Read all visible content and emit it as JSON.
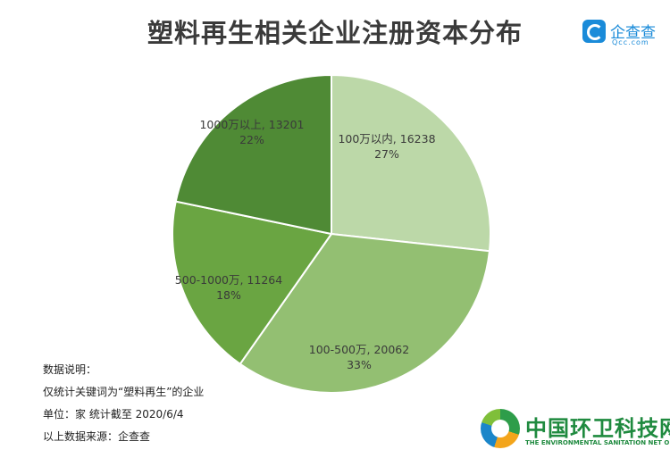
{
  "header": {
    "title": "塑料再生相关企业注册资本分布"
  },
  "brand": {
    "name": "企查查",
    "sub": "Qcc.com",
    "color": "#1a8bd9"
  },
  "chart_data": {
    "type": "pie",
    "title": "塑料再生相关企业注册资本分布",
    "slices": [
      {
        "label": "100万以内",
        "value": 16238,
        "percent": "27%",
        "color": "#bcd8a8"
      },
      {
        "label": "100-500万",
        "value": 20062,
        "percent": "33%",
        "color": "#93bf72"
      },
      {
        "label": "500-1000万",
        "value": 11264,
        "percent": "18%",
        "color": "#6aa542"
      },
      {
        "label": "1000万以上",
        "value": 13201,
        "percent": "22%",
        "color": "#4f8a35"
      }
    ]
  },
  "notes": {
    "heading": "数据说明：",
    "line1": "仅统计关键词为“塑料再生”的企业",
    "line2": "单位：家    统计截至 2020/6/4",
    "line3": "以上数据来源：企查查"
  },
  "footer": {
    "name_cn": "中国环卫科技网",
    "name_en": "THE ENVIRONMENTAL SANITATION NET OF CHINA",
    "color": "#1f8a3f"
  }
}
